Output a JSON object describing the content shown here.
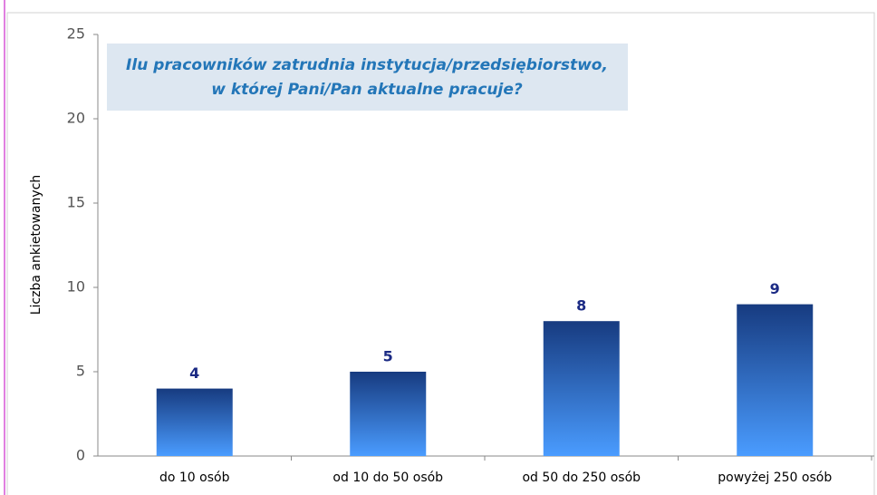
{
  "chart_data": {
    "type": "bar",
    "title": [
      "Ilu pracowników zatrudnia instytucja/przedsiębiorstwo,",
      "w której Pani/Pan aktualne pracuje?"
    ],
    "y_label": "Liczba ankietowanych",
    "categories": [
      "do 10 osób",
      "od 10 do 50 osób",
      "od 50 do 250 osób",
      "powyżej 250 osób"
    ],
    "values": [
      4,
      5,
      8,
      9
    ],
    "color": [
      "#173b80",
      "#4a9cff"
    ],
    "ylim": [
      0,
      25
    ],
    "yticks": [
      0,
      5,
      10,
      15,
      20,
      25
    ],
    "grid": false
  }
}
